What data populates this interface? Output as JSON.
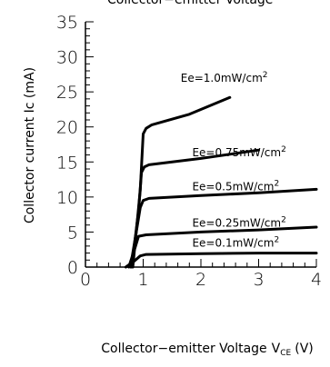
{
  "chart_data": {
    "type": "line",
    "title": "Collector−emitter Voltage",
    "xlabel": "Collector−emitter Voltage",
    "xlabel_symbol": "V",
    "xlabel_subscript": "CE",
    "xlabel_unit": "(V)",
    "ylabel": "Collector current Ic (mA)",
    "xlim": [
      0,
      4
    ],
    "ylim": [
      0,
      35
    ],
    "x_ticks": [
      0,
      1,
      2,
      3,
      4
    ],
    "y_ticks": [
      0,
      5,
      10,
      15,
      20,
      25,
      30,
      35
    ],
    "grid": false,
    "series": [
      {
        "name": "Ee=0.1mW/cm",
        "sup": "2",
        "points": [
          [
            0.7,
            0
          ],
          [
            0.85,
            0.9
          ],
          [
            0.95,
            1.6
          ],
          [
            1.05,
            1.8
          ],
          [
            2.0,
            1.9
          ],
          [
            3.0,
            2.0
          ],
          [
            4.0,
            2.0
          ]
        ]
      },
      {
        "name": "Ee=0.25mW/cm",
        "sup": "2",
        "points": [
          [
            0.75,
            0
          ],
          [
            0.85,
            2.5
          ],
          [
            0.92,
            4.4
          ],
          [
            1.05,
            4.6
          ],
          [
            2.0,
            5.0
          ],
          [
            3.0,
            5.3
          ],
          [
            4.0,
            5.7
          ]
        ]
      },
      {
        "name": "Ee=0.5mW/cm",
        "sup": "2",
        "points": [
          [
            0.78,
            0
          ],
          [
            0.88,
            5.0
          ],
          [
            0.95,
            8.5
          ],
          [
            1.0,
            9.5
          ],
          [
            1.1,
            9.8
          ],
          [
            2.0,
            10.2
          ],
          [
            3.0,
            10.6
          ],
          [
            4.0,
            11.1
          ]
        ]
      },
      {
        "name": "Ee=0.75mW/cm",
        "sup": "2",
        "points": [
          [
            0.8,
            0
          ],
          [
            0.92,
            8.0
          ],
          [
            0.97,
            13.5
          ],
          [
            1.02,
            14.3
          ],
          [
            1.1,
            14.6
          ],
          [
            2.0,
            15.5
          ],
          [
            3.0,
            16.7
          ]
        ]
      },
      {
        "name": "Ee=1.0mW/cm",
        "sup": "2",
        "points": [
          [
            0.82,
            0
          ],
          [
            0.95,
            11.0
          ],
          [
            1.0,
            19.0
          ],
          [
            1.05,
            19.8
          ],
          [
            1.15,
            20.3
          ],
          [
            1.8,
            21.8
          ],
          [
            2.5,
            24.2
          ]
        ]
      }
    ]
  }
}
